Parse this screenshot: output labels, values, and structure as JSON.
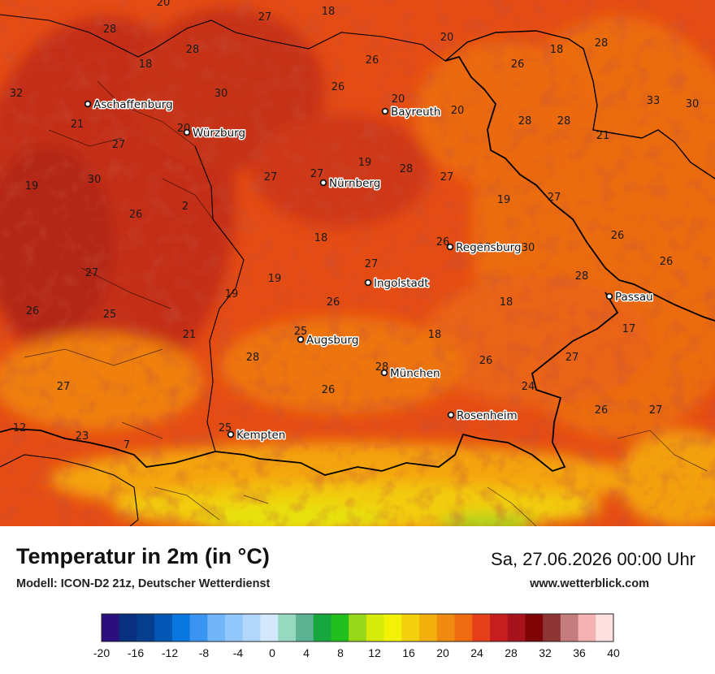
{
  "title": "Temperatur in 2m (in °C)",
  "subtitle": "Modell: ICON-D2 21z, Deutscher Wetterdienst",
  "datetime": "Sa, 27.06.2026 00:00 Uhr",
  "website": "www.wetterblick.com",
  "colors": {
    "land_base": "#e54c14",
    "warm_dark": "#bd2c14",
    "mid": "#ef7010",
    "cool": "#f7a410",
    "alpine_yellow": "#ecdf08",
    "alpine_green": "#8fd41a",
    "border": "#000000"
  },
  "cities": [
    {
      "name": "Aschaffenburg"
    },
    {
      "name": "Würzburg"
    },
    {
      "name": "Bayreuth"
    },
    {
      "name": "Nürnberg"
    },
    {
      "name": "Regensburg"
    },
    {
      "name": "Ingolstadt"
    },
    {
      "name": "Passau"
    },
    {
      "name": "Augsburg"
    },
    {
      "name": "München"
    },
    {
      "name": "Rosenheim"
    },
    {
      "name": "Kempten"
    }
  ],
  "temperature_labels": [
    "20",
    "27",
    "18",
    "28",
    "28",
    "18",
    "20",
    "26",
    "28",
    "32",
    "30",
    "18",
    "26",
    "26",
    "20",
    "21",
    "20",
    "20",
    "28",
    "28",
    "33",
    "30",
    "21",
    "19",
    "30",
    "27",
    "27",
    "27",
    "19",
    "28",
    "27",
    "26",
    "2",
    "19",
    "27",
    "18",
    "26",
    "26",
    "27",
    "18",
    "30",
    "26",
    "27",
    "19",
    "19",
    "28",
    "26",
    "26",
    "25",
    "18",
    "25",
    "21",
    "18",
    "17",
    "28",
    "26",
    "27",
    "27",
    "26",
    "24",
    "28",
    "26",
    "27",
    "25",
    "12",
    "23",
    "7"
  ],
  "legend": {
    "colors": [
      "#2c0f7e",
      "#07307f",
      "#053e8c",
      "#0456b4",
      "#0a77e0",
      "#3a95f2",
      "#72b6fa",
      "#92c8fb",
      "#b2d7fc",
      "#d3e8fd",
      "#97d9c0",
      "#5bb394",
      "#18a63e",
      "#20bf1c",
      "#98d81a",
      "#d6ea0c",
      "#f3f206",
      "#f2d00c",
      "#f1b10a",
      "#f08a10",
      "#f06a10",
      "#e5401a",
      "#c61e1e",
      "#a8121c",
      "#7e0406",
      "#8e3434",
      "#c47c7c",
      "#f4b2b2",
      "#ffe0e0"
    ],
    "tick_labels": [
      "-20",
      "-16",
      "-12",
      "-8",
      "-4",
      "0",
      "4",
      "8",
      "12",
      "16",
      "20",
      "24",
      "28",
      "32",
      "36",
      "40"
    ]
  }
}
